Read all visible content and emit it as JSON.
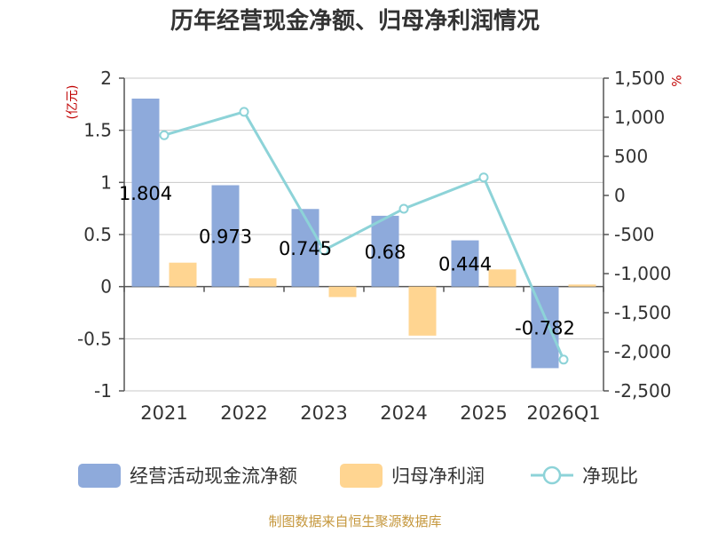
{
  "chart_data": {
    "type": "bar",
    "title": "历年经营现金净额、归母净利润情况",
    "categories": [
      "2021",
      "2022",
      "2023",
      "2024",
      "2025",
      "2026Q1"
    ],
    "series": [
      {
        "name": "经营活动现金流净额",
        "kind": "bar",
        "axis": "left",
        "color": "#8eaadb",
        "values": [
          1.804,
          0.973,
          0.745,
          0.68,
          0.444,
          -0.782
        ],
        "labels": [
          "1.804",
          "0.973",
          "0.745",
          "0.68",
          "0.444",
          "-0.782"
        ]
      },
      {
        "name": "归母净利润",
        "kind": "bar",
        "axis": "left",
        "color": "#ffd591",
        "values": [
          0.23,
          0.08,
          -0.1,
          -0.47,
          0.165,
          0.02
        ]
      },
      {
        "name": "净现比",
        "kind": "line",
        "axis": "right",
        "color": "#8dd3d8",
        "values": [
          770,
          1070,
          -700,
          -170,
          230,
          -2100
        ]
      }
    ],
    "y_left": {
      "unit": "(亿元)",
      "ylim": [
        -1,
        2
      ],
      "ticks": [
        2,
        1.5,
        1,
        0.5,
        0,
        -0.5,
        -1
      ],
      "tick_labels": [
        "2",
        "1.5",
        "1",
        "0.5",
        "0",
        "-0.5",
        "-1"
      ]
    },
    "y_right": {
      "unit": "%",
      "ylim": [
        -2500,
        1500
      ],
      "ticks": [
        1500,
        1000,
        500,
        0,
        -500,
        -1000,
        -1500,
        -2000,
        -2500
      ],
      "tick_labels": [
        "1,500",
        "1,000",
        "500",
        "0",
        "-500",
        "-1,000",
        "-1,500",
        "-2,000",
        "-2,500"
      ]
    },
    "grid": true,
    "legend_position": "bottom"
  },
  "source_text": "制图数据来自恒生聚源数据库"
}
